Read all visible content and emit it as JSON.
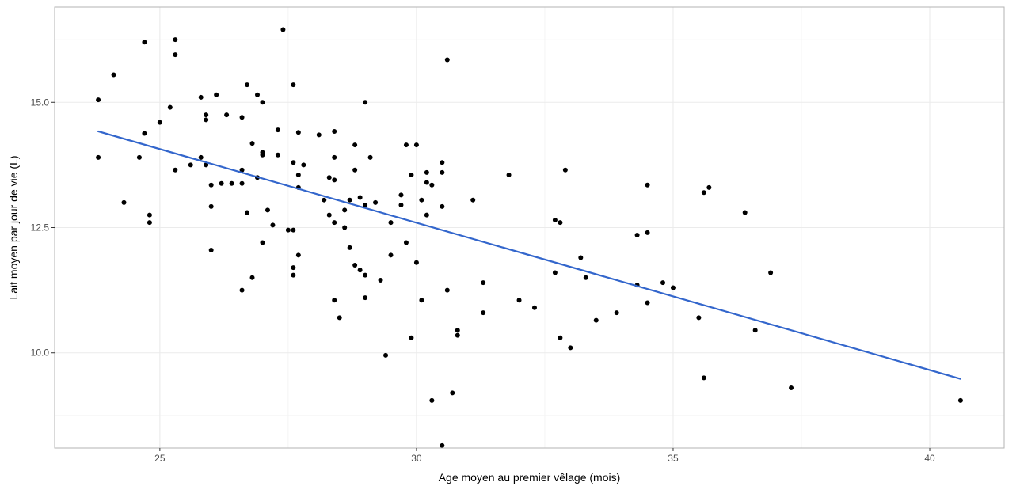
{
  "chart_data": {
    "type": "scatter",
    "title": "",
    "xlabel": "Age moyen au premier vêlage (mois)",
    "ylabel": "Lait moyen par jour de vie (L)",
    "xlim": [
      22.95,
      41.45
    ],
    "ylim": [
      8.1,
      16.9
    ],
    "x_ticks": [
      25,
      30,
      35,
      40
    ],
    "y_ticks": [
      10.0,
      12.5,
      15.0
    ],
    "x_tick_labels": [
      "25",
      "30",
      "35",
      "40"
    ],
    "y_tick_labels": [
      "10.0",
      "12.5",
      "15.0"
    ],
    "x_minor_ticks": [
      27.5,
      32.5,
      37.5
    ],
    "y_minor_ticks": [
      8.75,
      11.25,
      13.75,
      16.25
    ],
    "grid": true,
    "point_color": "#000000",
    "line_color": "#3366CC",
    "border_color": "#b3b3b3",
    "grid_color": "#ebebeb",
    "trend_line": {
      "x": [
        23.8,
        40.6
      ],
      "y": [
        14.42,
        9.48
      ]
    },
    "points": [
      [
        23.8,
        15.05
      ],
      [
        23.8,
        13.9
      ],
      [
        24.1,
        15.55
      ],
      [
        24.3,
        13.0
      ],
      [
        24.6,
        13.9
      ],
      [
        24.7,
        16.2
      ],
      [
        24.7,
        14.38
      ],
      [
        24.8,
        12.75
      ],
      [
        24.8,
        12.6
      ],
      [
        25.0,
        14.6
      ],
      [
        25.2,
        14.9
      ],
      [
        25.3,
        16.25
      ],
      [
        25.3,
        15.95
      ],
      [
        25.3,
        13.65
      ],
      [
        25.6,
        13.75
      ],
      [
        25.8,
        15.1
      ],
      [
        25.8,
        13.9
      ],
      [
        25.9,
        14.75
      ],
      [
        25.9,
        14.65
      ],
      [
        25.9,
        13.75
      ],
      [
        26.0,
        13.35
      ],
      [
        26.0,
        12.92
      ],
      [
        26.0,
        12.05
      ],
      [
        26.1,
        15.15
      ],
      [
        26.2,
        13.38
      ],
      [
        26.3,
        14.75
      ],
      [
        26.4,
        13.38
      ],
      [
        26.6,
        14.7
      ],
      [
        26.6,
        13.65
      ],
      [
        26.6,
        13.38
      ],
      [
        26.6,
        11.25
      ],
      [
        26.7,
        15.35
      ],
      [
        26.7,
        12.8
      ],
      [
        26.8,
        14.18
      ],
      [
        26.8,
        11.5
      ],
      [
        26.9,
        15.15
      ],
      [
        26.9,
        13.5
      ],
      [
        27.0,
        15.0
      ],
      [
        27.0,
        14.0
      ],
      [
        27.0,
        13.95
      ],
      [
        27.0,
        12.2
      ],
      [
        27.1,
        12.85
      ],
      [
        27.2,
        12.55
      ],
      [
        27.3,
        14.45
      ],
      [
        27.3,
        13.95
      ],
      [
        27.4,
        16.45
      ],
      [
        27.5,
        12.45
      ],
      [
        27.6,
        15.35
      ],
      [
        27.6,
        13.8
      ],
      [
        27.6,
        12.45
      ],
      [
        27.6,
        11.7
      ],
      [
        27.6,
        11.55
      ],
      [
        27.7,
        14.4
      ],
      [
        27.7,
        13.55
      ],
      [
        27.7,
        13.3
      ],
      [
        27.7,
        11.95
      ],
      [
        27.8,
        13.75
      ],
      [
        28.1,
        14.35
      ],
      [
        28.2,
        13.05
      ],
      [
        28.3,
        13.5
      ],
      [
        28.3,
        12.75
      ],
      [
        28.4,
        14.42
      ],
      [
        28.4,
        13.9
      ],
      [
        28.4,
        13.45
      ],
      [
        28.4,
        12.6
      ],
      [
        28.4,
        11.05
      ],
      [
        28.5,
        10.7
      ],
      [
        28.6,
        12.85
      ],
      [
        28.6,
        12.5
      ],
      [
        28.7,
        13.05
      ],
      [
        28.7,
        12.1
      ],
      [
        28.8,
        14.15
      ],
      [
        28.8,
        13.65
      ],
      [
        28.8,
        11.75
      ],
      [
        28.9,
        13.1
      ],
      [
        28.9,
        11.65
      ],
      [
        29.0,
        15.0
      ],
      [
        29.0,
        12.95
      ],
      [
        29.0,
        11.55
      ],
      [
        29.0,
        11.1
      ],
      [
        29.1,
        13.9
      ],
      [
        29.2,
        13.0
      ],
      [
        29.3,
        11.45
      ],
      [
        29.4,
        9.95
      ],
      [
        29.5,
        12.6
      ],
      [
        29.5,
        11.95
      ],
      [
        29.7,
        13.15
      ],
      [
        29.7,
        12.95
      ],
      [
        29.8,
        14.15
      ],
      [
        29.8,
        12.2
      ],
      [
        29.9,
        13.55
      ],
      [
        29.9,
        10.3
      ],
      [
        30.0,
        14.15
      ],
      [
        30.0,
        11.8
      ],
      [
        30.1,
        13.05
      ],
      [
        30.1,
        11.05
      ],
      [
        30.2,
        13.6
      ],
      [
        30.2,
        13.4
      ],
      [
        30.2,
        12.75
      ],
      [
        30.3,
        13.35
      ],
      [
        30.3,
        9.05
      ],
      [
        30.5,
        13.8
      ],
      [
        30.5,
        13.6
      ],
      [
        30.5,
        12.92
      ],
      [
        30.5,
        8.15
      ],
      [
        30.6,
        15.85
      ],
      [
        30.6,
        11.25
      ],
      [
        30.7,
        9.2
      ],
      [
        30.8,
        10.45
      ],
      [
        30.8,
        10.35
      ],
      [
        31.1,
        13.05
      ],
      [
        31.3,
        11.4
      ],
      [
        31.3,
        10.8
      ],
      [
        31.8,
        13.55
      ],
      [
        32.0,
        11.05
      ],
      [
        32.3,
        10.9
      ],
      [
        32.7,
        12.65
      ],
      [
        32.7,
        11.6
      ],
      [
        32.8,
        12.6
      ],
      [
        32.8,
        10.3
      ],
      [
        32.9,
        13.65
      ],
      [
        33.0,
        10.1
      ],
      [
        33.2,
        11.9
      ],
      [
        33.3,
        11.5
      ],
      [
        33.5,
        10.65
      ],
      [
        33.9,
        10.8
      ],
      [
        34.3,
        12.35
      ],
      [
        34.3,
        11.35
      ],
      [
        34.5,
        13.35
      ],
      [
        34.5,
        12.4
      ],
      [
        34.5,
        11.0
      ],
      [
        34.8,
        11.4
      ],
      [
        35.0,
        11.3
      ],
      [
        35.5,
        10.7
      ],
      [
        35.6,
        13.2
      ],
      [
        35.6,
        9.5
      ],
      [
        35.7,
        13.3
      ],
      [
        36.4,
        12.8
      ],
      [
        36.6,
        10.45
      ],
      [
        36.9,
        11.6
      ],
      [
        37.3,
        9.3
      ],
      [
        40.6,
        9.05
      ]
    ]
  }
}
